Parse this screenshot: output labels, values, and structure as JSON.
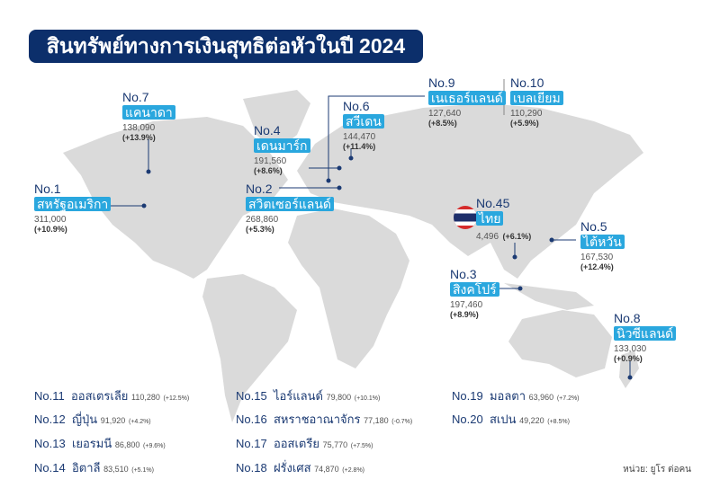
{
  "title": "สินทรัพย์ทางการเงินสุทธิต่อหัวในปี 2024",
  "colors": {
    "title_bg": "#0c2f6b",
    "label_bg": "#2aa7de",
    "rank_text": "#1b3a73",
    "land": "#dadada"
  },
  "callouts": [
    {
      "rank": "No.1",
      "country": "สหรัฐอเมริกา",
      "value": "311,000",
      "change": "(+10.9%)"
    },
    {
      "rank": "No.2",
      "country": "สวิตเซอร์แลนด์",
      "value": "268,860",
      "change": "(+5.3%)"
    },
    {
      "rank": "No.3",
      "country": "สิงคโปร์",
      "value": "197,460",
      "change": "(+8.9%)"
    },
    {
      "rank": "No.4",
      "country": "เดนมาร์ก",
      "value": "191,560",
      "change": "(+8.6%)"
    },
    {
      "rank": "No.5",
      "country": "ไต้หวัน",
      "value": "167,530",
      "change": "(+12.4%)"
    },
    {
      "rank": "No.6",
      "country": "สวีเดน",
      "value": "144,470",
      "change": "(+11.4%)"
    },
    {
      "rank": "No.7",
      "country": "แคนาดา",
      "value": "138,090",
      "change": "(+13.9%)"
    },
    {
      "rank": "No.8",
      "country": "นิวซีแลนด์",
      "value": "133,030",
      "change": "(+0.9%)"
    },
    {
      "rank": "No.9",
      "country": "เนเธอร์แลนด์",
      "value": "127,640",
      "change": "(+8.5%)"
    },
    {
      "rank": "No.10",
      "country": "เบลเยียม",
      "value": "110,290",
      "change": "(+5.9%)"
    },
    {
      "rank": "No.45",
      "country": "ไทย",
      "value": "4,496",
      "change": "(+6.1%)"
    }
  ],
  "list": [
    {
      "rank": "No.11",
      "country": "ออสเตรเลีย",
      "value": "110,280",
      "change": "(+12.5%)"
    },
    {
      "rank": "No.12",
      "country": "ญี่ปุ่น",
      "value": "91,920",
      "change": "(+4.2%)"
    },
    {
      "rank": "No.13",
      "country": "เยอรมนี",
      "value": "86,800",
      "change": "(+9.6%)"
    },
    {
      "rank": "No.14",
      "country": "อิตาลี",
      "value": "83,510",
      "change": "(+5.1%)"
    },
    {
      "rank": "No.15",
      "country": "ไอร์แลนด์",
      "value": "79,800",
      "change": "(+10.1%)"
    },
    {
      "rank": "No.16",
      "country": "สหราชอาณาจักร",
      "value": "77,180",
      "change": "(-0.7%)"
    },
    {
      "rank": "No.17",
      "country": "ออสเตรีย",
      "value": "75,770",
      "change": "(+7.5%)"
    },
    {
      "rank": "No.18",
      "country": "ฝรั่งเศส",
      "value": "74,870",
      "change": "(+2.8%)"
    },
    {
      "rank": "No.19",
      "country": "มอลตา",
      "value": "63,960",
      "change": "(+7.2%)"
    },
    {
      "rank": "No.20",
      "country": "สเปน",
      "value": "49,220",
      "change": "(+8.5%)"
    }
  ],
  "unit": "หน่วย: ยูโร ต่อคน"
}
